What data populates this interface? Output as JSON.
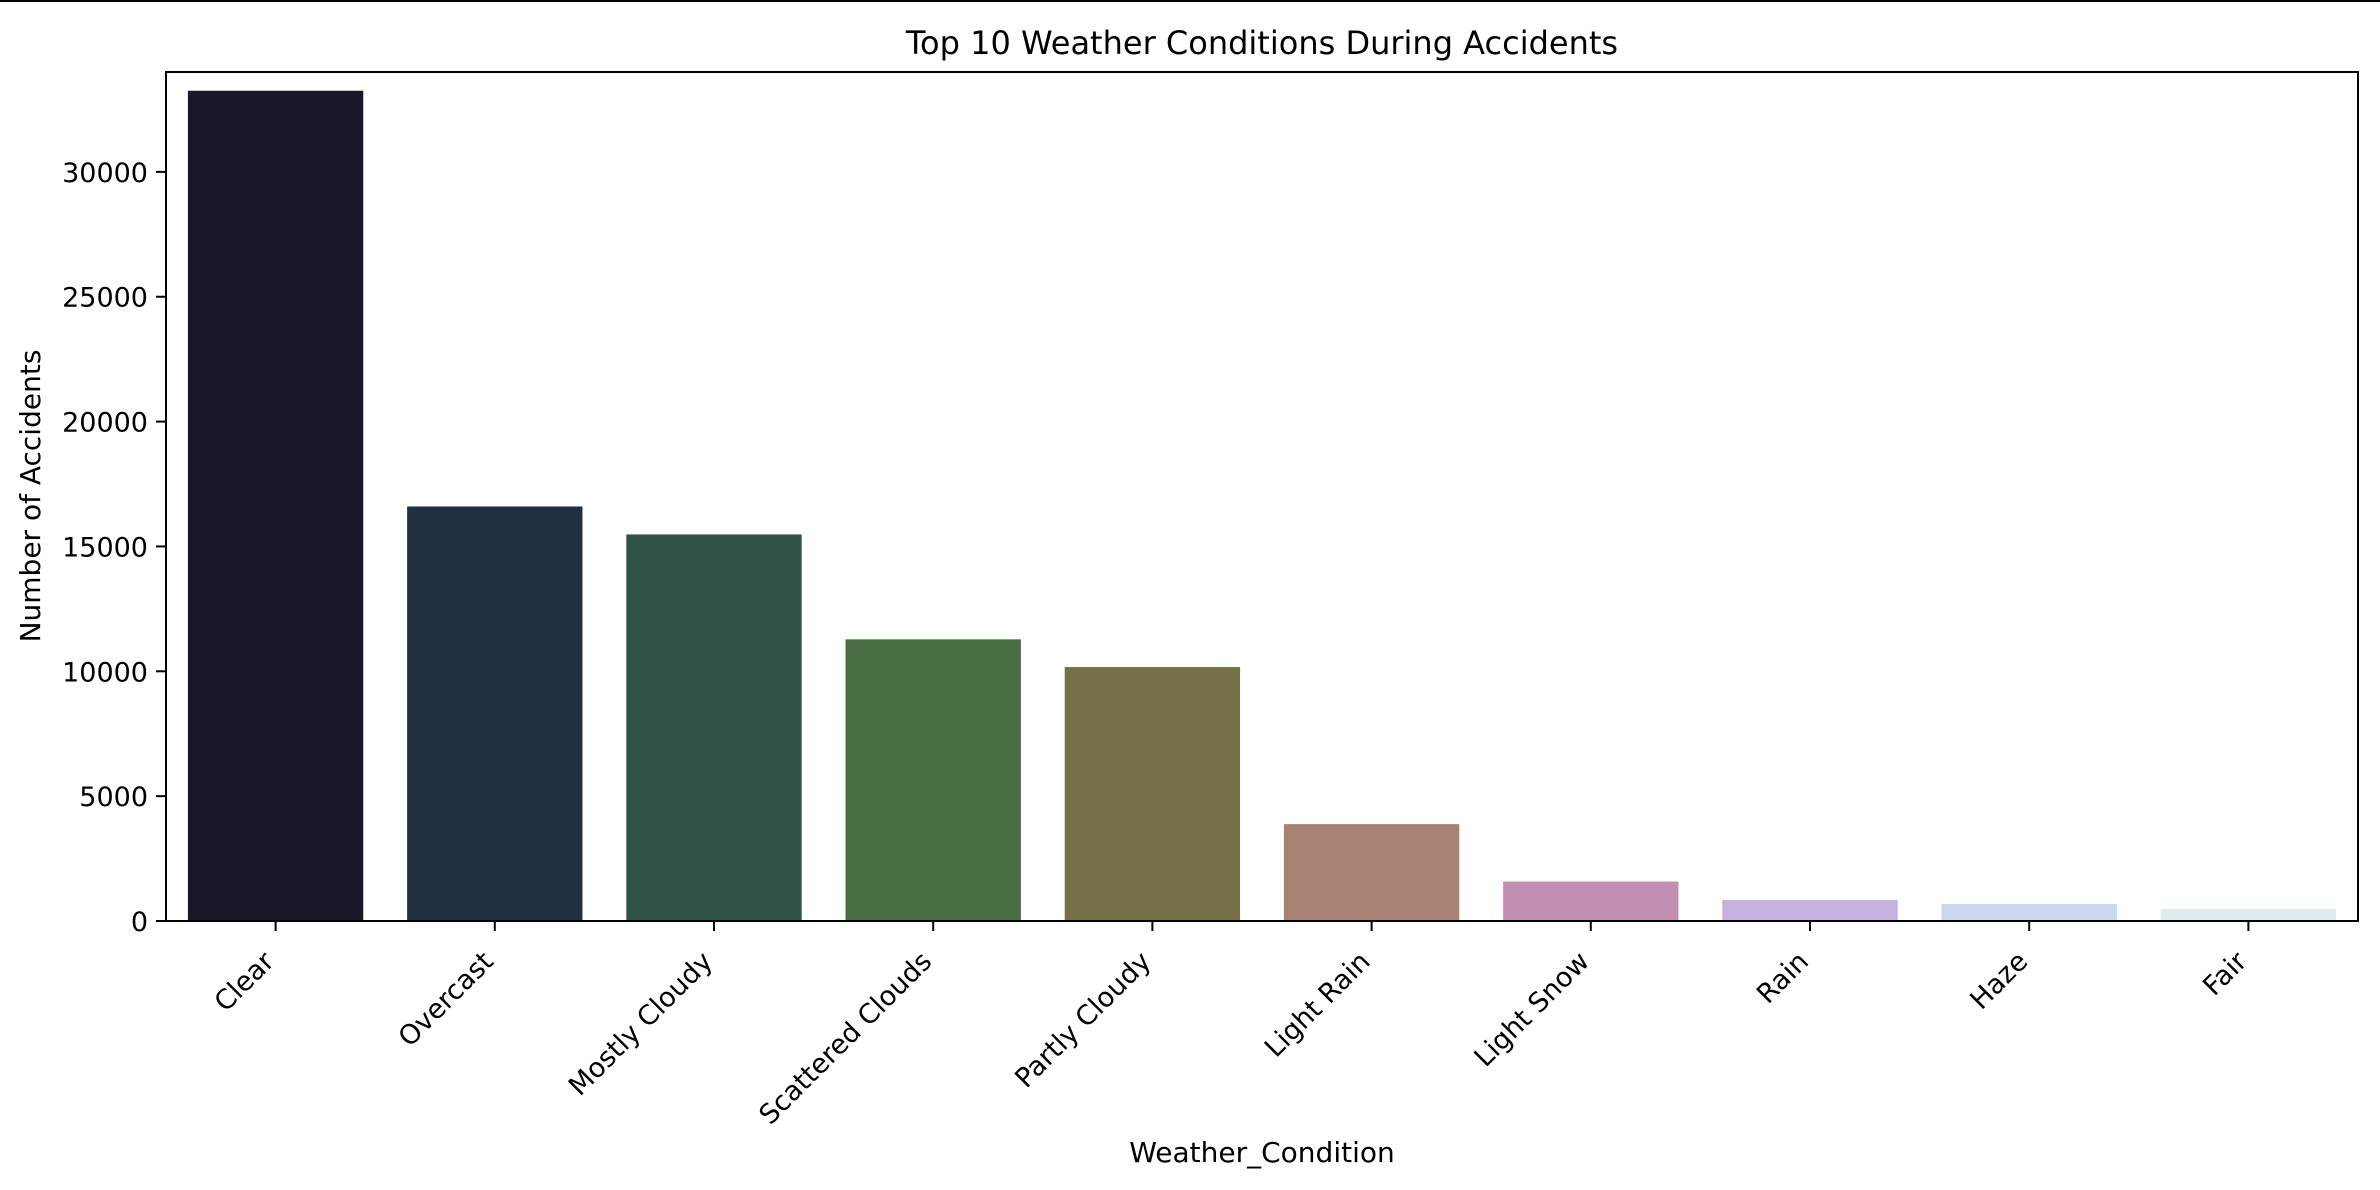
{
  "chart_data": {
    "type": "bar",
    "title": "Top 10 Weather Conditions During Accidents",
    "xlabel": "Weather_Condition",
    "ylabel": "Number of Accidents",
    "categories": [
      "Clear",
      "Overcast",
      "Mostly Cloudy",
      "Scattered Clouds",
      "Partly Cloudy",
      "Light Rain",
      "Light Snow",
      "Rain",
      "Haze",
      "Fair"
    ],
    "values": [
      33250,
      16600,
      15480,
      11280,
      10170,
      3880,
      1580,
      840,
      680,
      480
    ],
    "colors": [
      "#1b1728",
      "#223142",
      "#2e5248",
      "#4a6e43",
      "#747148",
      "#a88272",
      "#c290b2",
      "#c5b0df",
      "#ccd8ee",
      "#dfeeec"
    ],
    "ylim": [
      0,
      34000
    ],
    "yticks": [
      0,
      5000,
      10000,
      15000,
      20000,
      25000,
      30000
    ],
    "grid": false,
    "legend": "none"
  }
}
